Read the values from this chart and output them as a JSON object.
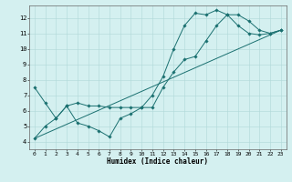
{
  "title": "",
  "xlabel": "Humidex (Indice chaleur)",
  "background_color": "#d4f0f0",
  "line_color": "#1a7070",
  "xlim": [
    -0.5,
    23.5
  ],
  "ylim": [
    3.5,
    12.8
  ],
  "xticks": [
    0,
    1,
    2,
    3,
    4,
    5,
    6,
    7,
    8,
    9,
    10,
    11,
    12,
    13,
    14,
    15,
    16,
    17,
    18,
    19,
    20,
    21,
    22,
    23
  ],
  "yticks": [
    4,
    5,
    6,
    7,
    8,
    9,
    10,
    11,
    12
  ],
  "series": [
    {
      "x": [
        0,
        1,
        2,
        3,
        4,
        5,
        6,
        7,
        8,
        9,
        10,
        11,
        12,
        13,
        14,
        15,
        16,
        17,
        18,
        19,
        20,
        21,
        22,
        23
      ],
      "y": [
        7.5,
        6.5,
        5.5,
        6.3,
        5.2,
        5.0,
        4.7,
        4.3,
        5.5,
        5.8,
        6.2,
        7.0,
        8.2,
        10.0,
        11.5,
        12.3,
        12.2,
        12.5,
        12.2,
        11.5,
        11.0,
        10.9,
        11.0,
        11.2
      ]
    },
    {
      "x": [
        0,
        1,
        2,
        3,
        4,
        5,
        6,
        7,
        8,
        9,
        10,
        11,
        12,
        13,
        14,
        15,
        16,
        17,
        18,
        19,
        20,
        21,
        22,
        23
      ],
      "y": [
        4.2,
        5.0,
        5.5,
        6.3,
        6.5,
        6.3,
        6.3,
        6.2,
        6.2,
        6.2,
        6.2,
        6.2,
        7.5,
        8.5,
        9.3,
        9.5,
        10.5,
        11.5,
        12.2,
        12.2,
        11.8,
        11.2,
        11.0,
        11.2
      ]
    },
    {
      "x": [
        0,
        23
      ],
      "y": [
        4.2,
        11.2
      ]
    }
  ]
}
